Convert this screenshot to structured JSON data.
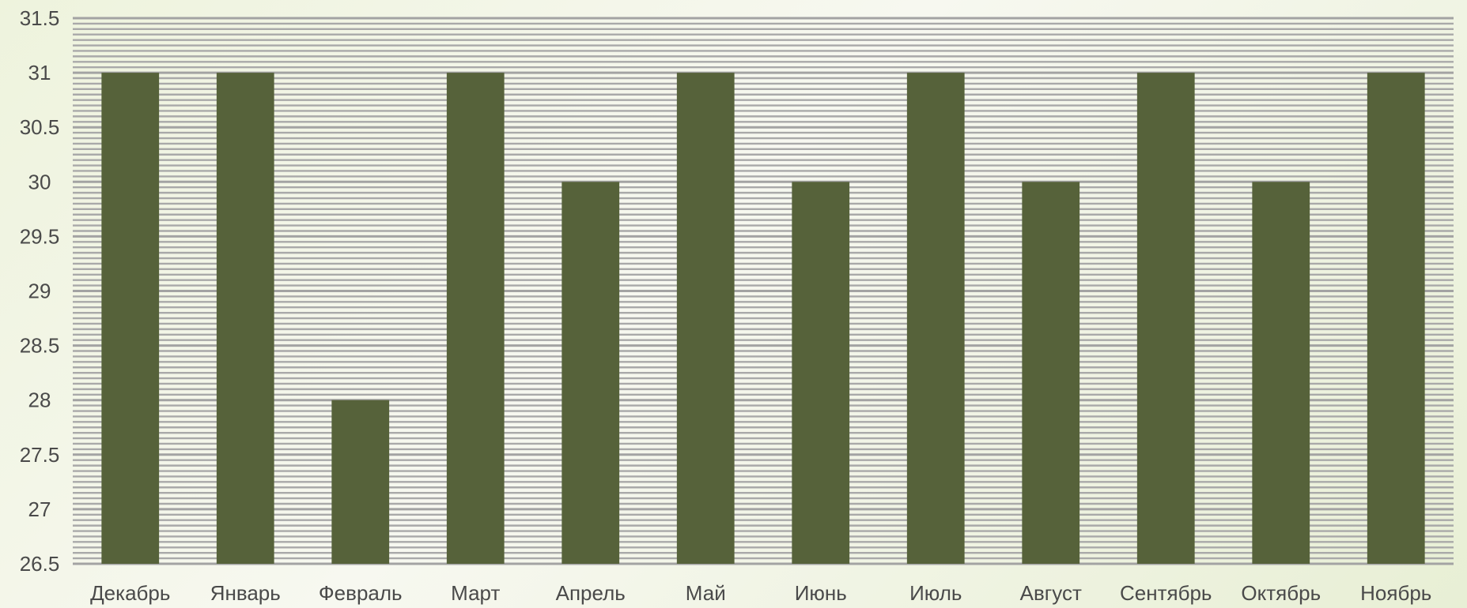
{
  "chart_data": {
    "type": "bar",
    "title": "",
    "xlabel": "",
    "ylabel": "",
    "categories": [
      "Декабрь",
      "Январь",
      "Февраль",
      "Март",
      "Апрель",
      "Май",
      "Июнь",
      "Июль",
      "Август",
      "Сентябрь",
      "Октябрь",
      "Ноябрь"
    ],
    "values": [
      31,
      31,
      28,
      31,
      30,
      31,
      30,
      31,
      30,
      31,
      30,
      31
    ],
    "ylim": [
      26.5,
      31.5
    ],
    "yticks": [
      "26.5",
      "27",
      "27.5",
      "28",
      "28.5",
      "29",
      "29.5",
      "30",
      "30.5",
      "31",
      "31.5"
    ],
    "grid": true,
    "legend": "none",
    "colors": {
      "bar": "#56623a",
      "major_grid": "#a3a3a3",
      "minor_grid": "#a9a9a9",
      "text": "#4a4a4a"
    }
  }
}
